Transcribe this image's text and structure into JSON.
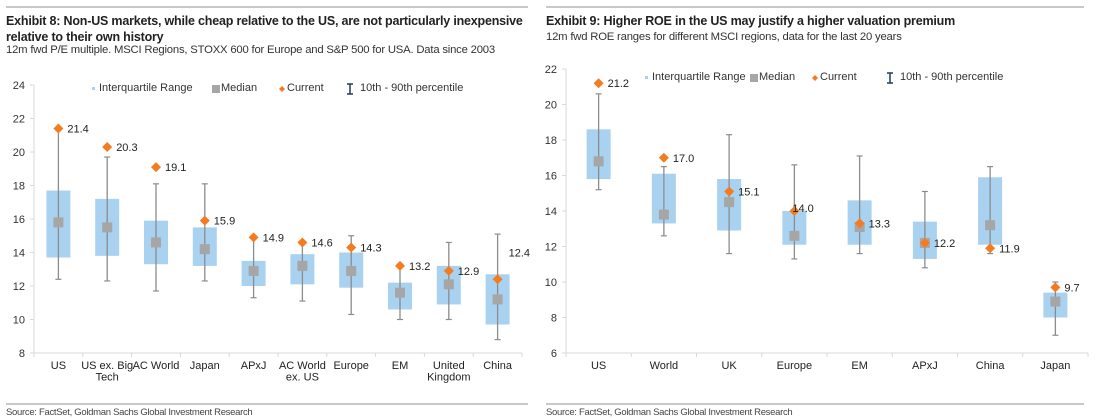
{
  "chart_data": [
    {
      "type": "boxplot",
      "title": "Exhibit 8: Non-US markets, while cheap relative to the US, are not particularly inexpensive relative to their own history",
      "subtitle": "12m fwd P/E multiple. MSCI Regions, STOXX 600 for Europe and S&P 500 for USA. Data since 2003",
      "source": "Source: FactSet, Goldman Sachs Global Investment Research",
      "xlabel": "",
      "ylabel": "",
      "ylim": [
        8,
        24
      ],
      "yticks": [
        8,
        10,
        12,
        14,
        16,
        18,
        20,
        22,
        24
      ],
      "grid": false,
      "legend": {
        "placement": "top",
        "entries": [
          "Interquartile Range",
          "Median",
          "Current",
          "10th - 90th percentile"
        ]
      },
      "categories": [
        "US",
        "US ex. Big Tech",
        "AC World",
        "Japan",
        "APxJ",
        "AC World ex. US",
        "Europe",
        "EM",
        "United Kingdom",
        "China"
      ],
      "category_lines": [
        [
          "US"
        ],
        [
          "US ex. Big",
          "Tech"
        ],
        [
          "AC World"
        ],
        [
          "Japan"
        ],
        [
          "APxJ"
        ],
        [
          "AC World",
          "ex. US"
        ],
        [
          "Europe"
        ],
        [
          "EM"
        ],
        [
          "United",
          "Kingdom"
        ],
        [
          "China"
        ]
      ],
      "series": [
        {
          "name": "10th percentile",
          "values": [
            12.4,
            12.3,
            11.7,
            12.3,
            11.3,
            11.1,
            10.3,
            10.0,
            10.0,
            8.8
          ]
        },
        {
          "name": "25th percentile",
          "values": [
            13.7,
            13.8,
            13.3,
            13.2,
            12.0,
            12.1,
            11.9,
            10.6,
            10.9,
            9.7
          ]
        },
        {
          "name": "Median",
          "values": [
            15.8,
            15.5,
            14.6,
            14.2,
            12.9,
            13.2,
            12.9,
            11.6,
            12.1,
            11.2
          ]
        },
        {
          "name": "75th percentile",
          "values": [
            17.7,
            17.2,
            15.9,
            15.5,
            13.5,
            13.9,
            14.0,
            12.2,
            13.2,
            12.7
          ]
        },
        {
          "name": "90th percentile",
          "values": [
            21.4,
            19.7,
            18.1,
            18.1,
            14.9,
            14.6,
            15.0,
            13.2,
            14.6,
            15.1
          ]
        },
        {
          "name": "Current",
          "values": [
            21.4,
            20.3,
            19.1,
            15.9,
            14.9,
            14.6,
            14.3,
            13.2,
            12.9,
            12.4
          ]
        }
      ],
      "current_labels": [
        "21.4",
        "20.3",
        "19.1",
        "15.9",
        "14.9",
        "14.6",
        "14.3",
        "13.2",
        "12.9",
        "12.4"
      ]
    },
    {
      "type": "boxplot",
      "title": "Exhibit 9: Higher ROE in the US may justify a higher valuation premium",
      "subtitle": "12m fwd ROE ranges for different MSCI regions, data for the last 20 years",
      "source": "Source: FactSet, Goldman Sachs Global Investment Research",
      "xlabel": "",
      "ylabel": "",
      "ylim": [
        6,
        22
      ],
      "yticks": [
        6,
        8,
        10,
        12,
        14,
        16,
        18,
        20,
        22
      ],
      "grid": false,
      "legend": {
        "placement": "top",
        "entries": [
          "Interquartile Range",
          "Median",
          "Current",
          "10th - 90th percentile"
        ]
      },
      "categories": [
        "US",
        "World",
        "UK",
        "Europe",
        "EM",
        "APxJ",
        "China",
        "Japan"
      ],
      "category_lines": [
        [
          "US"
        ],
        [
          "World"
        ],
        [
          "UK"
        ],
        [
          "Europe"
        ],
        [
          "EM"
        ],
        [
          "APxJ"
        ],
        [
          "China"
        ],
        [
          "Japan"
        ]
      ],
      "series": [
        {
          "name": "10th percentile",
          "values": [
            15.2,
            12.6,
            11.6,
            11.3,
            11.6,
            10.8,
            11.6,
            7.0
          ]
        },
        {
          "name": "25th percentile",
          "values": [
            15.8,
            13.3,
            12.9,
            12.1,
            12.1,
            11.3,
            12.1,
            8.0
          ]
        },
        {
          "name": "Median",
          "values": [
            16.8,
            13.8,
            14.5,
            12.6,
            13.1,
            12.2,
            13.2,
            8.9
          ]
        },
        {
          "name": "75th percentile",
          "values": [
            18.6,
            16.1,
            15.8,
            14.0,
            14.6,
            13.4,
            15.9,
            9.4
          ]
        },
        {
          "name": "90th percentile",
          "values": [
            20.6,
            16.5,
            18.3,
            16.6,
            17.1,
            15.1,
            16.5,
            10.0
          ]
        },
        {
          "name": "Current",
          "values": [
            21.2,
            17.0,
            15.1,
            14.0,
            13.3,
            12.2,
            11.9,
            9.7
          ]
        }
      ],
      "current_labels": [
        "21.2",
        "17.0",
        "15.1",
        "14.0",
        "13.3",
        "12.2",
        "11.9",
        "9.7"
      ]
    }
  ],
  "colors": {
    "iqr_box": "#a9d1f0",
    "median": "#a6a6a6",
    "current": "#f47b20",
    "whisker": "#8c8c8c",
    "axis": "#d9d9d9"
  }
}
